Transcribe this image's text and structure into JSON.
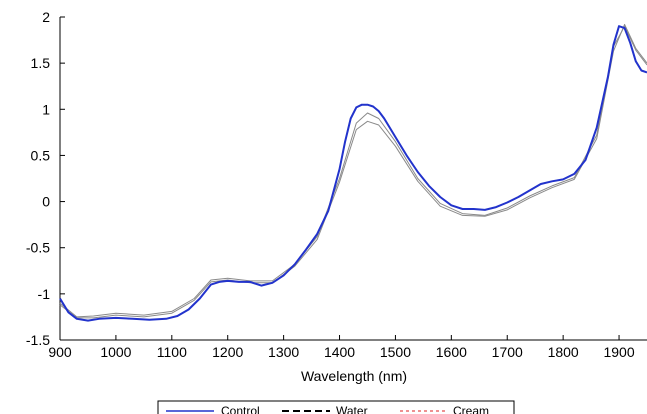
{
  "chart_data": {
    "type": "line",
    "xlabel": "Wavelength (nm)",
    "ylabel": "",
    "xlim": [
      900,
      1950
    ],
    "ylim": [
      -1.5,
      2
    ],
    "xticks": [
      900,
      1000,
      1100,
      1200,
      1300,
      1400,
      1500,
      1600,
      1700,
      1800,
      1900
    ],
    "yticks": [
      -1.5,
      -1,
      -0.5,
      0,
      0.5,
      1,
      1.5,
      2
    ],
    "xtick_labels": [
      "900",
      "1000",
      "1100",
      "1200",
      "1300",
      "1400",
      "1500",
      "1600",
      "1700",
      "1800",
      "1900"
    ],
    "ytick_labels": [
      "-1.5",
      "-1",
      "-0.5",
      "0",
      "0.5",
      "1",
      "1.5",
      "2"
    ],
    "grid": false,
    "legend_position": "bottom",
    "series": [
      {
        "name": "Control",
        "color": "#2233cc",
        "style": "solid",
        "x": [
          900,
          915,
          930,
          950,
          970,
          1000,
          1030,
          1060,
          1090,
          1110,
          1130,
          1150,
          1170,
          1185,
          1200,
          1220,
          1240,
          1260,
          1280,
          1300,
          1320,
          1340,
          1360,
          1380,
          1400,
          1410,
          1420,
          1430,
          1440,
          1450,
          1460,
          1470,
          1480,
          1500,
          1520,
          1540,
          1560,
          1580,
          1600,
          1620,
          1640,
          1660,
          1680,
          1700,
          1720,
          1740,
          1760,
          1780,
          1800,
          1820,
          1840,
          1860,
          1880,
          1890,
          1900,
          1910,
          1920,
          1930,
          1940,
          1950
        ],
        "values": [
          -1.05,
          -1.2,
          -1.27,
          -1.29,
          -1.27,
          -1.26,
          -1.27,
          -1.28,
          -1.27,
          -1.24,
          -1.17,
          -1.05,
          -0.9,
          -0.87,
          -0.86,
          -0.87,
          -0.87,
          -0.91,
          -0.88,
          -0.8,
          -0.68,
          -0.52,
          -0.35,
          -0.1,
          0.35,
          0.65,
          0.9,
          1.02,
          1.05,
          1.05,
          1.03,
          0.98,
          0.9,
          0.7,
          0.5,
          0.32,
          0.17,
          0.05,
          -0.04,
          -0.08,
          -0.08,
          -0.09,
          -0.06,
          -0.01,
          0.05,
          0.12,
          0.19,
          0.22,
          0.24,
          0.3,
          0.45,
          0.8,
          1.35,
          1.7,
          1.9,
          1.88,
          1.72,
          1.52,
          1.42,
          1.4
        ]
      },
      {
        "name": "Water",
        "color": "#000000",
        "style": "dashed",
        "x": [
          900,
          930,
          960,
          1000,
          1050,
          1100,
          1140,
          1170,
          1200,
          1240,
          1280,
          1320,
          1360,
          1400,
          1430,
          1450,
          1470,
          1500,
          1540,
          1580,
          1620,
          1660,
          1700,
          1740,
          1780,
          1820,
          1860,
          1890,
          1910,
          1930,
          1950
        ],
        "values": [
          -1.1,
          -1.25,
          -1.24,
          -1.21,
          -1.23,
          -1.19,
          -1.05,
          -0.85,
          -0.83,
          -0.86,
          -0.86,
          -0.68,
          -0.38,
          0.25,
          0.85,
          0.96,
          0.9,
          0.65,
          0.25,
          -0.02,
          -0.13,
          -0.15,
          -0.07,
          0.06,
          0.17,
          0.26,
          0.72,
          1.68,
          1.9,
          1.64,
          1.48
        ]
      },
      {
        "name": "Cream",
        "color": "#dd2222",
        "style": "dashed",
        "x": [
          900,
          930,
          960,
          1000,
          1050,
          1100,
          1140,
          1170,
          1200,
          1240,
          1280,
          1320,
          1360,
          1400,
          1430,
          1450,
          1470,
          1500,
          1540,
          1580,
          1620,
          1660,
          1700,
          1740,
          1780,
          1820,
          1860,
          1890,
          1910,
          1930,
          1950
        ],
        "values": [
          -1.12,
          -1.26,
          -1.26,
          -1.23,
          -1.25,
          -1.21,
          -1.07,
          -0.87,
          -0.85,
          -0.88,
          -0.88,
          -0.7,
          -0.41,
          0.21,
          0.78,
          0.87,
          0.83,
          0.6,
          0.22,
          -0.05,
          -0.15,
          -0.16,
          -0.09,
          0.04,
          0.15,
          0.24,
          0.68,
          1.63,
          1.92,
          1.66,
          1.5
        ]
      }
    ]
  }
}
